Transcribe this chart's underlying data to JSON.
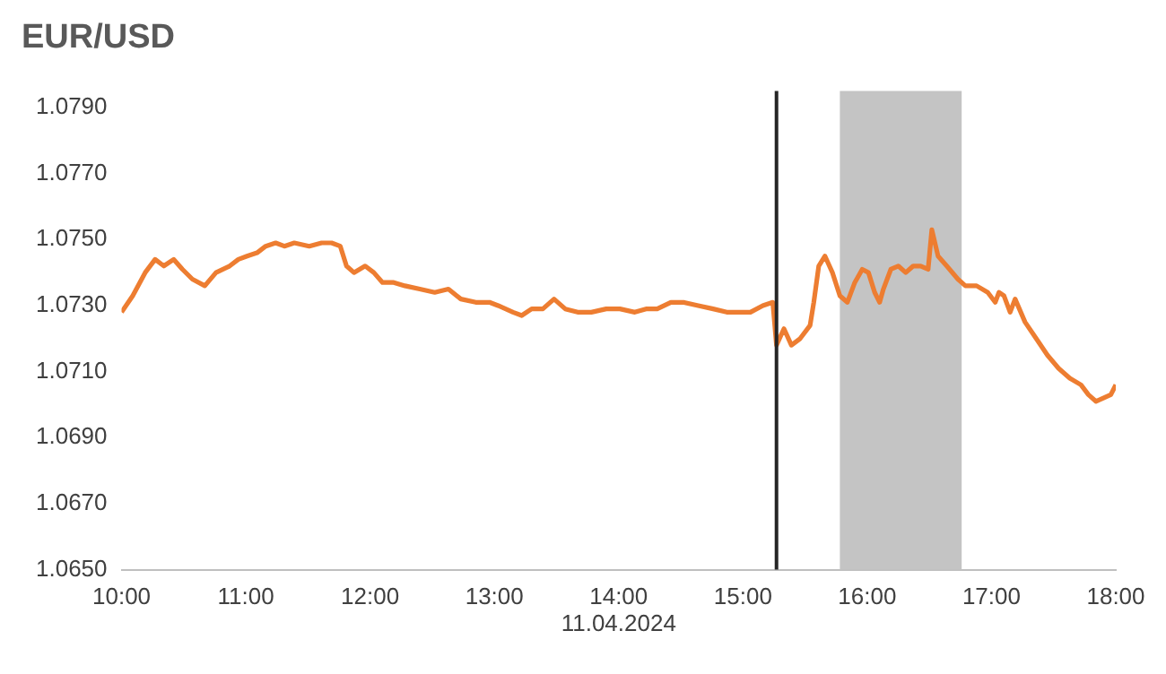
{
  "chart_data": {
    "type": "line",
    "title": "EUR/USD",
    "xlabel": "11.04.2024",
    "x": [
      10,
      10.09,
      10.19,
      10.27,
      10.34,
      10.42,
      10.49,
      10.57,
      10.67,
      10.76,
      10.87,
      10.94,
      11.01,
      11.09,
      11.16,
      11.24,
      11.31,
      11.39,
      11.51,
      11.61,
      11.69,
      11.76,
      11.81,
      11.87,
      11.96,
      12.03,
      12.1,
      12.19,
      12.28,
      12.4,
      12.52,
      12.63,
      12.73,
      12.85,
      12.96,
      13.03,
      13.15,
      13.22,
      13.3,
      13.39,
      13.48,
      13.57,
      13.67,
      13.78,
      13.9,
      14.01,
      14.13,
      14.22,
      14.31,
      14.42,
      14.52,
      14.64,
      14.76,
      14.87,
      14.97,
      15.06,
      15.16,
      15.24,
      15.27,
      15.33,
      15.39,
      15.46,
      15.54,
      15.57,
      15.61,
      15.66,
      15.72,
      15.78,
      15.84,
      15.9,
      15.96,
      16.01,
      16.06,
      16.1,
      16.13,
      16.19,
      16.25,
      16.31,
      16.37,
      16.43,
      16.49,
      16.52,
      16.57,
      16.64,
      16.73,
      16.79,
      16.88,
      16.97,
      17.03,
      17.06,
      17.1,
      17.15,
      17.19,
      17.27,
      17.36,
      17.45,
      17.54,
      17.63,
      17.72,
      17.78,
      17.84,
      17.9,
      17.96,
      18
    ],
    "series": [
      {
        "color": "#ed7d31",
        "values": [
          1.0728,
          1.0733,
          1.074,
          1.0744,
          1.0742,
          1.0744,
          1.0741,
          1.0738,
          1.0736,
          1.074,
          1.0742,
          1.0744,
          1.0745,
          1.0746,
          1.0748,
          1.0749,
          1.0748,
          1.0749,
          1.0748,
          1.0749,
          1.0749,
          1.0748,
          1.0742,
          1.074,
          1.0742,
          1.074,
          1.0737,
          1.0737,
          1.0736,
          1.0735,
          1.0734,
          1.0735,
          1.0732,
          1.0731,
          1.0731,
          1.073,
          1.0728,
          1.0727,
          1.0729,
          1.0729,
          1.0732,
          1.0729,
          1.0728,
          1.0728,
          1.0729,
          1.0729,
          1.0728,
          1.0729,
          1.0729,
          1.0731,
          1.0731,
          1.073,
          1.0729,
          1.0728,
          1.0728,
          1.0728,
          1.073,
          1.0731,
          1.0718,
          1.0723,
          1.0718,
          1.072,
          1.0724,
          1.0731,
          1.0742,
          1.0745,
          1.074,
          1.0733,
          1.0731,
          1.0737,
          1.0741,
          1.074,
          1.0734,
          1.0731,
          1.0735,
          1.0741,
          1.0742,
          1.074,
          1.0742,
          1.0742,
          1.0741,
          1.0753,
          1.0745,
          1.0742,
          1.0738,
          1.0736,
          1.0736,
          1.0734,
          1.0731,
          1.0734,
          1.0733,
          1.0728,
          1.0732,
          1.0725,
          1.072,
          1.0715,
          1.0711,
          1.0708,
          1.0706,
          1.0703,
          1.0701,
          1.0702,
          1.0703,
          1.0706
        ]
      }
    ],
    "xlim": [
      10,
      18
    ],
    "xticks": [
      {
        "value": 10,
        "label": "10:00"
      },
      {
        "value": 11,
        "label": "11:00"
      },
      {
        "value": 12,
        "label": "12:00"
      },
      {
        "value": 13,
        "label": "13:00"
      },
      {
        "value": 14,
        "label": "14:00"
      },
      {
        "value": 15,
        "label": "15:00"
      },
      {
        "value": 16,
        "label": "16:00"
      },
      {
        "value": 17,
        "label": "17:00"
      },
      {
        "value": 18,
        "label": "18:00"
      }
    ],
    "ylim": [
      1.065,
      1.0795
    ],
    "yticks": [
      {
        "value": 1.065,
        "label": "1.0650"
      },
      {
        "value": 1.067,
        "label": "1.0670"
      },
      {
        "value": 1.069,
        "label": "1.0690"
      },
      {
        "value": 1.071,
        "label": "1.0710"
      },
      {
        "value": 1.073,
        "label": "1.0730"
      },
      {
        "value": 1.075,
        "label": "1.0750"
      },
      {
        "value": 1.077,
        "label": "1.0770"
      },
      {
        "value": 1.079,
        "label": "1.0790"
      }
    ],
    "ref_lines": [
      {
        "axis": "x",
        "value": 15.27,
        "color": "#262626"
      }
    ],
    "bands": [
      {
        "axis": "x",
        "from": 15.78,
        "to": 16.76,
        "color": "#c4c4c4"
      }
    ],
    "grid": false,
    "legend": false,
    "marker": "none",
    "line_style": "solid"
  }
}
